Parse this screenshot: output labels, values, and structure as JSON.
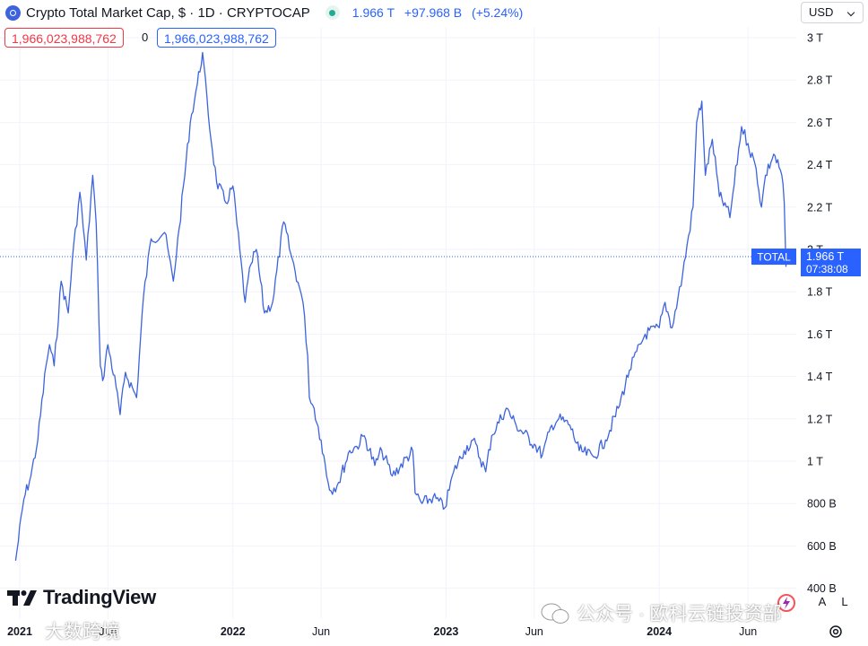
{
  "header": {
    "symbol_title": "Crypto Total Market Cap, $ · 1D · CRYPTOCAP",
    "last_value": "1.966 T",
    "change": "+97.968 B",
    "change_pct": "(+5.24%)",
    "currency": "USD"
  },
  "crosshair": {
    "red_value": "1,966,023,988,762",
    "zero_label": "0",
    "blue_value": "1,966,023,988,762"
  },
  "price_tag": {
    "series_label": "TOTAL",
    "value": "1.966 T",
    "countdown": "07:38:08"
  },
  "branding": {
    "logo_text": "TradingView"
  },
  "controls": {
    "log_button": "A",
    "lin_button": "L"
  },
  "watermarks": {
    "left": "大数跨境",
    "right": "公众号 · 欧科云链投资部"
  },
  "colors": {
    "line": "#3d63dd",
    "accent": "#2962ff",
    "negative": "#f23645",
    "positive": "#22ab94",
    "grid": "#f0f3fa"
  },
  "chart_data": {
    "type": "line",
    "series": [
      {
        "name": "TOTAL",
        "x": [
          "2020-12-25",
          "2021-01-08",
          "2021-01-20",
          "2021-02-01",
          "2021-02-15",
          "2021-02-21",
          "2021-03-01",
          "2021-03-13",
          "2021-03-25",
          "2021-04-01",
          "2021-04-14",
          "2021-04-25",
          "2021-05-06",
          "2021-05-12",
          "2021-05-19",
          "2021-05-23",
          "2021-06-01",
          "2021-06-15",
          "2021-06-22",
          "2021-07-01",
          "2021-07-20",
          "2021-08-01",
          "2021-08-14",
          "2021-09-06",
          "2021-09-21",
          "2021-10-01",
          "2021-10-20",
          "2021-11-01",
          "2021-11-10",
          "2021-11-20",
          "2021-12-04",
          "2021-12-20",
          "2022-01-01",
          "2022-01-22",
          "2022-02-01",
          "2022-02-10",
          "2022-02-24",
          "2022-03-10",
          "2022-03-29",
          "2022-04-10",
          "2022-04-25",
          "2022-05-01",
          "2022-05-09",
          "2022-05-12",
          "2022-05-20",
          "2022-06-01",
          "2022-06-13",
          "2022-06-18",
          "2022-07-01",
          "2022-07-20",
          "2022-08-01",
          "2022-08-14",
          "2022-09-01",
          "2022-09-13",
          "2022-10-01",
          "2022-11-05",
          "2022-11-09",
          "2022-11-21",
          "2022-12-10",
          "2022-12-30",
          "2023-01-14",
          "2023-02-01",
          "2023-02-16",
          "2023-03-10",
          "2023-03-20",
          "2023-04-14",
          "2023-05-01",
          "2023-06-01",
          "2023-06-15",
          "2023-07-01",
          "2023-07-13",
          "2023-08-01",
          "2023-08-17",
          "2023-09-11",
          "2023-10-01",
          "2023-10-23",
          "2023-11-11",
          "2023-12-08",
          "2024-01-01",
          "2024-01-11",
          "2024-01-23",
          "2024-02-10",
          "2024-02-28",
          "2024-03-05",
          "2024-03-14",
          "2024-03-20",
          "2024-04-01",
          "2024-04-13",
          "2024-04-25",
          "2024-05-01",
          "2024-05-21",
          "2024-06-01",
          "2024-06-15",
          "2024-06-24",
          "2024-07-01",
          "2024-07-15",
          "2024-07-29",
          "2024-08-02",
          "2024-08-05",
          "2024-08-06",
          "2024-08-08"
        ],
        "y": [
          0.53,
          0.82,
          0.93,
          1.1,
          1.45,
          1.55,
          1.45,
          1.85,
          1.7,
          1.95,
          2.27,
          1.95,
          2.35,
          2.12,
          1.45,
          1.38,
          1.55,
          1.35,
          1.22,
          1.42,
          1.3,
          1.78,
          2.05,
          2.08,
          1.85,
          2.1,
          2.6,
          2.78,
          2.93,
          2.63,
          2.32,
          2.22,
          2.3,
          1.75,
          1.93,
          2.0,
          1.7,
          1.75,
          2.13,
          1.98,
          1.82,
          1.75,
          1.5,
          1.3,
          1.25,
          1.1,
          0.9,
          0.86,
          0.9,
          1.05,
          1.07,
          1.12,
          0.98,
          1.05,
          0.93,
          1.05,
          0.85,
          0.8,
          0.83,
          0.78,
          0.95,
          1.05,
          1.1,
          0.95,
          1.12,
          1.25,
          1.17,
          1.08,
          1.03,
          1.17,
          1.2,
          1.17,
          1.05,
          1.02,
          1.1,
          1.25,
          1.43,
          1.6,
          1.63,
          1.75,
          1.63,
          1.88,
          2.2,
          2.6,
          2.7,
          2.35,
          2.52,
          2.25,
          2.2,
          2.15,
          2.58,
          2.5,
          2.38,
          2.2,
          2.35,
          2.45,
          2.35,
          2.22,
          1.92,
          1.98,
          1.966
        ]
      }
    ],
    "ylim": [
      0.35,
      3.0
    ],
    "y_ticks": [
      "400 B",
      "600 B",
      "800 B",
      "1 T",
      "1.2 T",
      "1.4 T",
      "1.6 T",
      "1.8 T",
      "2 T",
      "2.2 T",
      "2.4 T",
      "2.6 T",
      "2.8 T",
      "3 T"
    ],
    "x_ticks": [
      "2021",
      "Jun",
      "2022",
      "Jun",
      "2023",
      "Jun",
      "2024",
      "Jun"
    ],
    "grid": true,
    "legend": "none"
  }
}
